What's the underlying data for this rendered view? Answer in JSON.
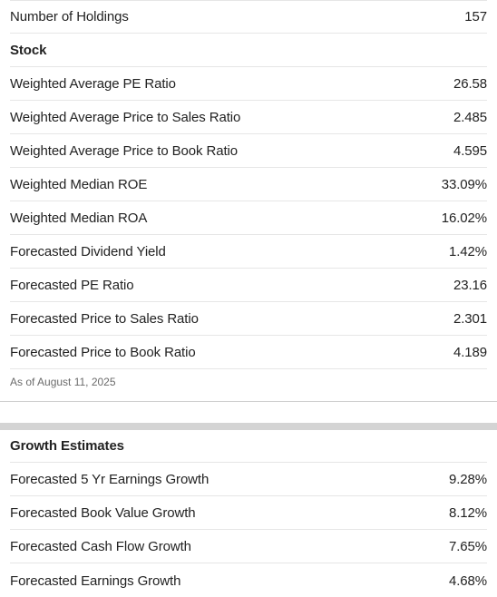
{
  "holdings": {
    "label": "Number of Holdings",
    "value": "157"
  },
  "stock": {
    "title": "Stock",
    "rows": [
      {
        "label": "Weighted Average PE Ratio",
        "value": "26.58"
      },
      {
        "label": "Weighted Average Price to Sales Ratio",
        "value": "2.485"
      },
      {
        "label": "Weighted Average Price to Book Ratio",
        "value": "4.595"
      },
      {
        "label": "Weighted Median ROE",
        "value": "33.09%"
      },
      {
        "label": "Weighted Median ROA",
        "value": "16.02%"
      },
      {
        "label": "Forecasted Dividend Yield",
        "value": "1.42%"
      },
      {
        "label": "Forecasted PE Ratio",
        "value": "23.16"
      },
      {
        "label": "Forecasted Price to Sales Ratio",
        "value": "2.301"
      },
      {
        "label": "Forecasted Price to Book Ratio",
        "value": "4.189"
      }
    ],
    "as_of": "As of August 11, 2025"
  },
  "growth": {
    "title": "Growth Estimates",
    "rows": [
      {
        "label": "Forecasted 5 Yr Earnings Growth",
        "value": "9.28%"
      },
      {
        "label": "Forecasted Book Value Growth",
        "value": "8.12%"
      },
      {
        "label": "Forecasted Cash Flow Growth",
        "value": "7.65%"
      },
      {
        "label": "Forecasted Earnings Growth",
        "value": "4.68%"
      }
    ]
  }
}
